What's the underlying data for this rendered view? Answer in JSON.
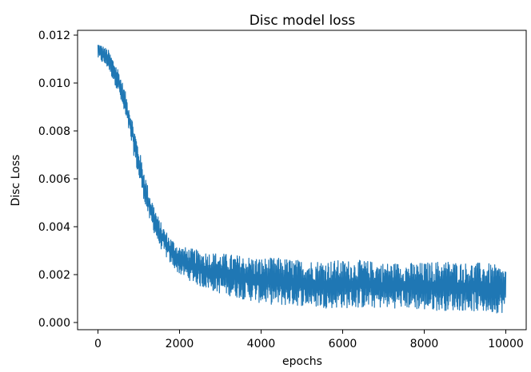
{
  "chart_data": {
    "type": "line",
    "title": "Disc model loss",
    "xlabel": "epochs",
    "ylabel": "Disc Loss",
    "xlim": [
      -500,
      10500
    ],
    "ylim": [
      -0.0003,
      0.0122
    ],
    "x_ticks": [
      0,
      2000,
      4000,
      6000,
      8000,
      10000
    ],
    "x_tick_labels": [
      "0",
      "2000",
      "4000",
      "6000",
      "8000",
      "10000"
    ],
    "y_ticks": [
      0.0,
      0.002,
      0.004,
      0.006,
      0.008,
      0.01,
      0.012
    ],
    "y_tick_labels": [
      "0.000",
      "0.002",
      "0.004",
      "0.006",
      "0.008",
      "0.010",
      "0.012"
    ],
    "grid": false,
    "series": [
      {
        "color": "#1f77b4",
        "x": [
          0,
          250,
          500,
          750,
          1000,
          1250,
          1500,
          1750,
          2000,
          2500,
          3000,
          3500,
          4000,
          4500,
          5000,
          5500,
          6000,
          6500,
          7000,
          7500,
          8000,
          8500,
          9000,
          9500,
          10000
        ],
        "lower": [
          0.011,
          0.0106,
          0.0096,
          0.008,
          0.006,
          0.0043,
          0.0032,
          0.0025,
          0.002,
          0.0015,
          0.0012,
          0.001,
          0.0008,
          0.0007,
          0.0007,
          0.0006,
          0.0006,
          0.0006,
          0.0006,
          0.0006,
          0.0005,
          0.0005,
          0.0005,
          0.0004,
          0.0004
        ],
        "upper": [
          0.0117,
          0.0114,
          0.0106,
          0.0092,
          0.0073,
          0.0055,
          0.0043,
          0.0036,
          0.0032,
          0.003,
          0.0029,
          0.0028,
          0.0027,
          0.0027,
          0.0026,
          0.0026,
          0.0026,
          0.0026,
          0.0025,
          0.0025,
          0.0025,
          0.0026,
          0.0025,
          0.0025,
          0.0023
        ]
      }
    ]
  }
}
